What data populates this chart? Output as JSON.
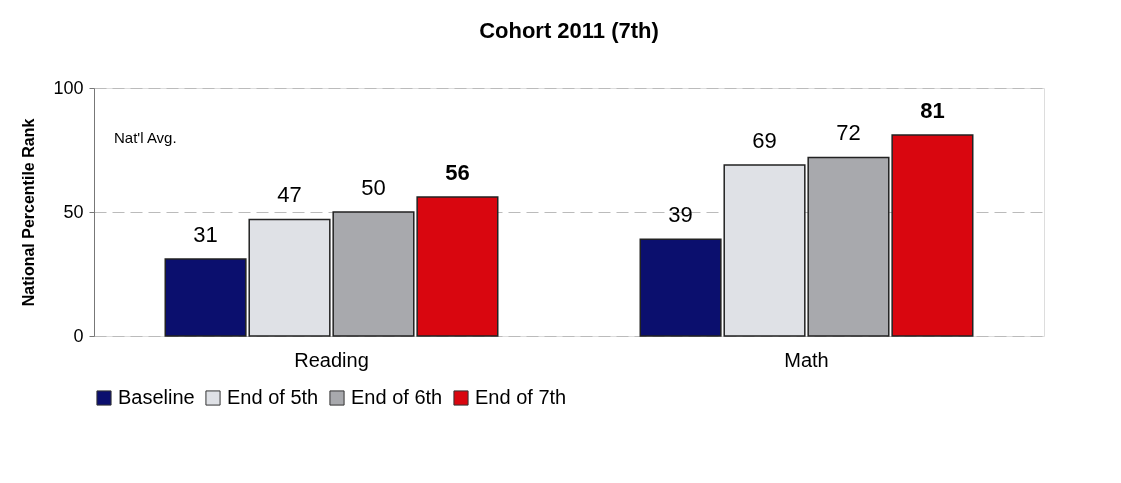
{
  "chart_data": {
    "type": "bar",
    "title": "Cohort 2011 (7th)",
    "ylabel": "National Percentile Rank",
    "categories": [
      "Reading",
      "Math"
    ],
    "series": [
      {
        "name": "Baseline",
        "color": "#0b0f6e",
        "values": [
          31,
          39
        ]
      },
      {
        "name": "End of 5th",
        "color": "#dfe1e6",
        "values": [
          47,
          69
        ]
      },
      {
        "name": "End of 6th",
        "color": "#a8a9ad",
        "values": [
          50,
          72
        ]
      },
      {
        "name": "End of 7th",
        "color": "#d9060f",
        "values": [
          56,
          81
        ]
      }
    ],
    "ylim": [
      0,
      100
    ],
    "yticks": [
      0,
      50,
      100
    ],
    "grid": "y",
    "legend": "bottom",
    "data_labels": true,
    "annotations": [
      "Nat'l Avg."
    ]
  }
}
